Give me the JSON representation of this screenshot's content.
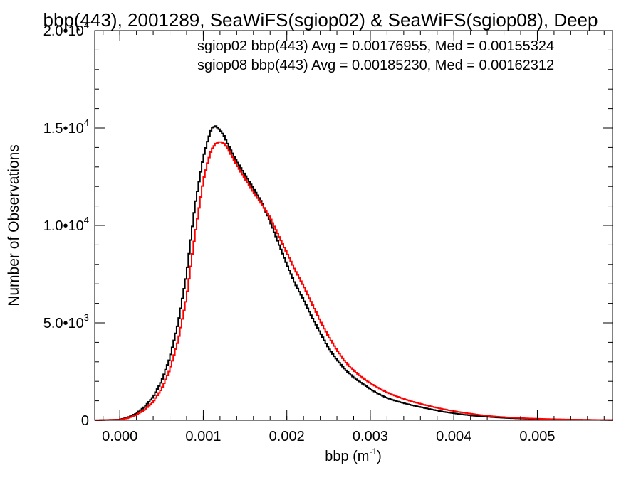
{
  "chart_data": {
    "type": "line",
    "title": "bbp(443), 2001289, SeaWiFS(sgiop02) & SeaWiFS(sgiop08), Deep",
    "xlabel": "bbp (m",
    "xlabel_sup": "-1",
    "xlabel_close": ")",
    "ylabel": "Number of Observations",
    "xlim": [
      -0.0003,
      0.0059
    ],
    "ylim": [
      0,
      20000
    ],
    "grid": false,
    "legend_position": "top-right",
    "x_ticks": [
      {
        "value": 0.0,
        "label": "0.000"
      },
      {
        "value": 0.001,
        "label": "0.001"
      },
      {
        "value": 0.002,
        "label": "0.002"
      },
      {
        "value": 0.003,
        "label": "0.003"
      },
      {
        "value": 0.004,
        "label": "0.004"
      },
      {
        "value": 0.005,
        "label": "0.005"
      }
    ],
    "y_ticks": [
      {
        "value": 0,
        "mant": "0",
        "exp": ""
      },
      {
        "value": 5000,
        "mant": "5.0•10",
        "exp": "3"
      },
      {
        "value": 10000,
        "mant": "1.0•10",
        "exp": "4"
      },
      {
        "value": 15000,
        "mant": "1.5•10",
        "exp": "4"
      },
      {
        "value": 20000,
        "mant": "2.0•10",
        "exp": "4"
      }
    ],
    "series": [
      {
        "name": "sgiop02",
        "legend": "sgiop02 bbp(443) Avg = 0.00176955, Med = 0.00155324",
        "color": "#000000",
        "points": [
          [
            -0.0003,
            0
          ],
          [
            0.0,
            40
          ],
          [
            0.0001,
            150
          ],
          [
            0.0002,
            350
          ],
          [
            0.0003,
            700
          ],
          [
            0.0004,
            1200
          ],
          [
            0.0005,
            2000
          ],
          [
            0.0006,
            3200
          ],
          [
            0.0007,
            5000
          ],
          [
            0.0008,
            7500
          ],
          [
            0.0009,
            11000
          ],
          [
            0.001,
            13500
          ],
          [
            0.00105,
            14300
          ],
          [
            0.0011,
            15000
          ],
          [
            0.00115,
            15100
          ],
          [
            0.0012,
            14900
          ],
          [
            0.00125,
            14600
          ],
          [
            0.0013,
            14100
          ],
          [
            0.0014,
            13300
          ],
          [
            0.0015,
            12600
          ],
          [
            0.0016,
            11900
          ],
          [
            0.0017,
            11200
          ],
          [
            0.0018,
            10200
          ],
          [
            0.0019,
            9100
          ],
          [
            0.002,
            8000
          ],
          [
            0.0021,
            7000
          ],
          [
            0.0022,
            6200
          ],
          [
            0.0023,
            5300
          ],
          [
            0.0024,
            4500
          ],
          [
            0.0025,
            3700
          ],
          [
            0.0026,
            3100
          ],
          [
            0.0027,
            2600
          ],
          [
            0.0028,
            2200
          ],
          [
            0.0029,
            1900
          ],
          [
            0.003,
            1600
          ],
          [
            0.0031,
            1350
          ],
          [
            0.0032,
            1150
          ],
          [
            0.0033,
            1000
          ],
          [
            0.0034,
            880
          ],
          [
            0.0035,
            770
          ],
          [
            0.0036,
            680
          ],
          [
            0.0037,
            590
          ],
          [
            0.0038,
            500
          ],
          [
            0.0039,
            420
          ],
          [
            0.004,
            360
          ],
          [
            0.0041,
            300
          ],
          [
            0.0042,
            250
          ],
          [
            0.0043,
            210
          ],
          [
            0.0044,
            180
          ],
          [
            0.0045,
            150
          ],
          [
            0.0046,
            125
          ],
          [
            0.0047,
            105
          ],
          [
            0.0048,
            90
          ],
          [
            0.0049,
            75
          ],
          [
            0.005,
            65
          ],
          [
            0.0051,
            55
          ],
          [
            0.0052,
            45
          ],
          [
            0.0053,
            38
          ],
          [
            0.0054,
            32
          ],
          [
            0.0055,
            27
          ],
          [
            0.0056,
            22
          ],
          [
            0.0057,
            18
          ],
          [
            0.0058,
            14
          ],
          [
            0.0059,
            10
          ]
        ]
      },
      {
        "name": "sgiop08",
        "legend": "sgiop08 bbp(443) Avg = 0.00185230, Med = 0.00162312",
        "color": "#ff0000",
        "points": [
          [
            -0.0003,
            0
          ],
          [
            0.0,
            30
          ],
          [
            0.0001,
            110
          ],
          [
            0.0002,
            270
          ],
          [
            0.0003,
            550
          ],
          [
            0.0004,
            950
          ],
          [
            0.0005,
            1600
          ],
          [
            0.0006,
            2600
          ],
          [
            0.0007,
            4100
          ],
          [
            0.0008,
            6300
          ],
          [
            0.0009,
            9500
          ],
          [
            0.001,
            12300
          ],
          [
            0.00105,
            13200
          ],
          [
            0.0011,
            13900
          ],
          [
            0.00115,
            14200
          ],
          [
            0.0012,
            14300
          ],
          [
            0.00125,
            14200
          ],
          [
            0.0013,
            13900
          ],
          [
            0.0014,
            13100
          ],
          [
            0.0015,
            12400
          ],
          [
            0.0016,
            11700
          ],
          [
            0.0017,
            11100
          ],
          [
            0.0018,
            10400
          ],
          [
            0.0019,
            9500
          ],
          [
            0.002,
            8600
          ],
          [
            0.0021,
            7700
          ],
          [
            0.0022,
            6900
          ],
          [
            0.0023,
            6000
          ],
          [
            0.0024,
            5100
          ],
          [
            0.0025,
            4300
          ],
          [
            0.0026,
            3600
          ],
          [
            0.0027,
            3000
          ],
          [
            0.0028,
            2550
          ],
          [
            0.0029,
            2200
          ],
          [
            0.003,
            1900
          ],
          [
            0.0031,
            1650
          ],
          [
            0.0032,
            1430
          ],
          [
            0.0033,
            1250
          ],
          [
            0.0034,
            1100
          ],
          [
            0.0035,
            960
          ],
          [
            0.0036,
            850
          ],
          [
            0.0037,
            740
          ],
          [
            0.0038,
            640
          ],
          [
            0.0039,
            550
          ],
          [
            0.004,
            470
          ],
          [
            0.0041,
            400
          ],
          [
            0.0042,
            340
          ],
          [
            0.0043,
            280
          ],
          [
            0.0044,
            230
          ],
          [
            0.0045,
            190
          ],
          [
            0.0046,
            160
          ],
          [
            0.0047,
            135
          ],
          [
            0.0048,
            115
          ],
          [
            0.0049,
            95
          ],
          [
            0.005,
            80
          ],
          [
            0.0051,
            65
          ],
          [
            0.0052,
            55
          ],
          [
            0.0053,
            45
          ],
          [
            0.0054,
            38
          ],
          [
            0.0055,
            32
          ],
          [
            0.0056,
            26
          ],
          [
            0.0057,
            21
          ],
          [
            0.0058,
            17
          ],
          [
            0.0059,
            13
          ]
        ]
      }
    ]
  }
}
